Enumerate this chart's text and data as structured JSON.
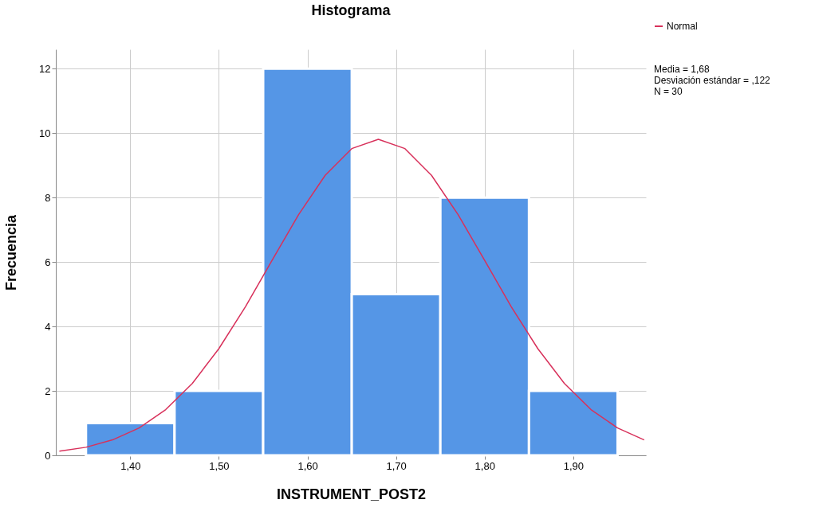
{
  "chart_data": {
    "type": "histogram",
    "title": "Histograma",
    "xlabel": "INSTRUMENT_POST2",
    "ylabel": "Frecuencia",
    "bins": [
      1.35,
      1.45,
      1.55,
      1.65,
      1.75,
      1.85,
      1.95
    ],
    "series": [
      {
        "type": "histogram",
        "color": "#5596e6",
        "values": [
          1,
          2,
          12,
          5,
          8,
          2
        ]
      },
      {
        "type": "line",
        "name": "Normal",
        "color": "#d8315b",
        "x": [
          1.32,
          1.35,
          1.38,
          1.41,
          1.44,
          1.47,
          1.5,
          1.53,
          1.56,
          1.59,
          1.62,
          1.65,
          1.68,
          1.71,
          1.74,
          1.77,
          1.8,
          1.83,
          1.86,
          1.89,
          1.92,
          1.95,
          1.98
        ],
        "values": [
          0.13,
          0.25,
          0.48,
          0.85,
          1.42,
          2.23,
          3.31,
          4.61,
          6.05,
          7.47,
          8.69,
          9.52,
          9.81,
          9.52,
          8.69,
          7.47,
          6.05,
          4.61,
          3.31,
          2.23,
          1.42,
          0.85,
          0.48
        ]
      }
    ],
    "xlim": [
      1.316,
      1.982
    ],
    "xticks": [
      {
        "value": 1.4,
        "label": "1,40"
      },
      {
        "value": 1.5,
        "label": "1,50"
      },
      {
        "value": 1.6,
        "label": "1,60"
      },
      {
        "value": 1.7,
        "label": "1,70"
      },
      {
        "value": 1.8,
        "label": "1,80"
      },
      {
        "value": 1.9,
        "label": "1,90"
      }
    ],
    "ylim": [
      0,
      12.6
    ],
    "yticks": [
      0,
      2,
      4,
      6,
      8,
      10,
      12
    ],
    "grid": true,
    "legend": "top right",
    "annotations": [
      "Media = 1,68",
      "Desviación estándar = ,122",
      "N = 30"
    ]
  }
}
